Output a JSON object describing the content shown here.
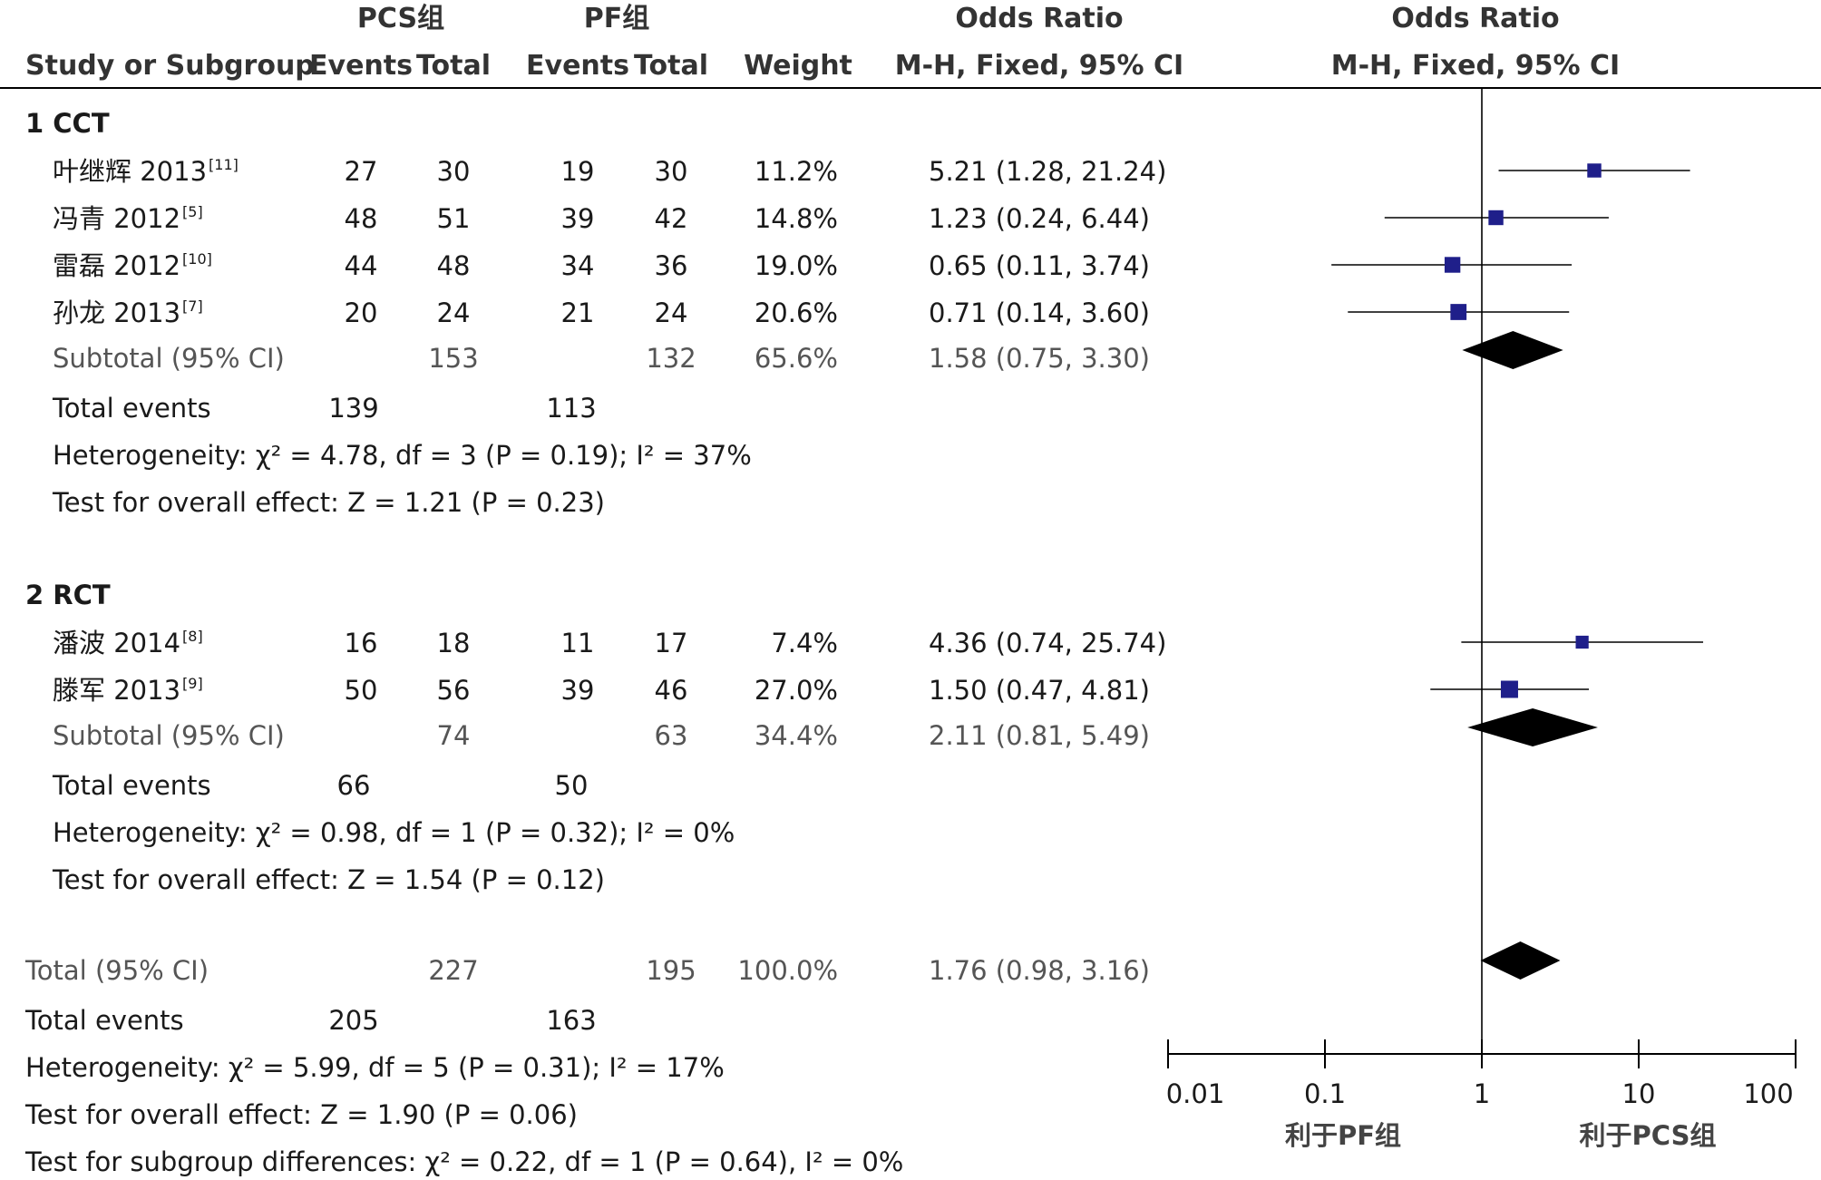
{
  "chart_data": {
    "type": "table",
    "header": {
      "group1": "PCS组",
      "group2": "PF组",
      "study_col": "Study or Subgroup",
      "events": "Events",
      "total": "Total",
      "weight": "Weight",
      "or_title": "Odds Ratio",
      "or_method": "M-H, Fixed, 95% CI",
      "plot_title": "Odds Ratio",
      "plot_method": "M-H, Fixed, 95% CI"
    },
    "x_axis": {
      "scale": "log",
      "ticks": [
        0.01,
        0.1,
        1,
        10,
        100
      ],
      "tick_labels": [
        "0.01",
        "0.1",
        "1",
        "10",
        "100"
      ],
      "favours_left": "利于PF组",
      "favours_right": "利于PCS组"
    },
    "subgroups": [
      {
        "label": "1  CCT",
        "studies": [
          {
            "name": "叶继辉 2013",
            "ref": "[11]",
            "e1": 27,
            "t1": 30,
            "e2": 19,
            "t2": 30,
            "weight": "11.2%",
            "or_text": "5.21 (1.28, 21.24)",
            "or": 5.21,
            "lo": 1.28,
            "hi": 21.24
          },
          {
            "name": "冯青 2012",
            "ref": "[5]",
            "e1": 48,
            "t1": 51,
            "e2": 39,
            "t2": 42,
            "weight": "14.8%",
            "or_text": "1.23 (0.24, 6.44)",
            "or": 1.23,
            "lo": 0.24,
            "hi": 6.44
          },
          {
            "name": "雷磊 2012",
            "ref": "[10]",
            "e1": 44,
            "t1": 48,
            "e2": 34,
            "t2": 36,
            "weight": "19.0%",
            "or_text": "0.65 (0.11, 3.74)",
            "or": 0.65,
            "lo": 0.11,
            "hi": 3.74
          },
          {
            "name": "孙龙 2013",
            "ref": "[7]",
            "e1": 20,
            "t1": 24,
            "e2": 21,
            "t2": 24,
            "weight": "20.6%",
            "or_text": "0.71 (0.14, 3.60)",
            "or": 0.71,
            "lo": 0.14,
            "hi": 3.6
          }
        ],
        "subtotal": {
          "label": "Subtotal (95% CI)",
          "t1": 153,
          "t2": 132,
          "weight": "65.6%",
          "or_text": "1.58 (0.75, 3.30)",
          "or": 1.58,
          "lo": 0.75,
          "hi": 3.3
        },
        "total_events": {
          "label": "Total events",
          "e1": 139,
          "e2": 113
        },
        "heterogeneity": "Heterogeneity: χ² = 4.78, df = 3 (P = 0.19); I² = 37%",
        "overall_effect": "Test for overall effect: Z = 1.21 (P = 0.23)"
      },
      {
        "label": "2  RCT",
        "studies": [
          {
            "name": "潘波 2014",
            "ref": "[8]",
            "e1": 16,
            "t1": 18,
            "e2": 11,
            "t2": 17,
            "weight": "7.4%",
            "or_text": "4.36 (0.74, 25.74)",
            "or": 4.36,
            "lo": 0.74,
            "hi": 25.74
          },
          {
            "name": "滕军 2013",
            "ref": "[9]",
            "e1": 50,
            "t1": 56,
            "e2": 39,
            "t2": 46,
            "weight": "27.0%",
            "or_text": "1.50 (0.47, 4.81)",
            "or": 1.5,
            "lo": 0.47,
            "hi": 4.81
          }
        ],
        "subtotal": {
          "label": "Subtotal (95% CI)",
          "t1": 74,
          "t2": 63,
          "weight": "34.4%",
          "or_text": "2.11 (0.81, 5.49)",
          "or": 2.11,
          "lo": 0.81,
          "hi": 5.49
        },
        "total_events": {
          "label": "Total events",
          "e1": 66,
          "e2": 50
        },
        "heterogeneity": "Heterogeneity: χ² = 0.98, df = 1 (P = 0.32); I² = 0%",
        "overall_effect": "Test for overall effect: Z = 1.54 (P = 0.12)"
      }
    ],
    "total": {
      "label": "Total (95% CI)",
      "t1": 227,
      "t2": 195,
      "weight": "100.0%",
      "or_text": "1.76 (0.98, 3.16)",
      "or": 1.76,
      "lo": 0.98,
      "hi": 3.16
    },
    "total_events": {
      "label": "Total events",
      "e1": 205,
      "e2": 163
    },
    "heterogeneity": "Heterogeneity: χ² = 5.99, df = 5 (P = 0.31); I² = 17%",
    "overall_effect": "Test for overall effect: Z = 1.90 (P = 0.06)",
    "subgroup_differences": "Test for subgroup differences: χ² = 0.22, df = 1 (P = 0.64), I² = 0%",
    "colors": {
      "study_marker": "#1f1f8a",
      "diamond": "#000000",
      "line": "#000000"
    }
  }
}
